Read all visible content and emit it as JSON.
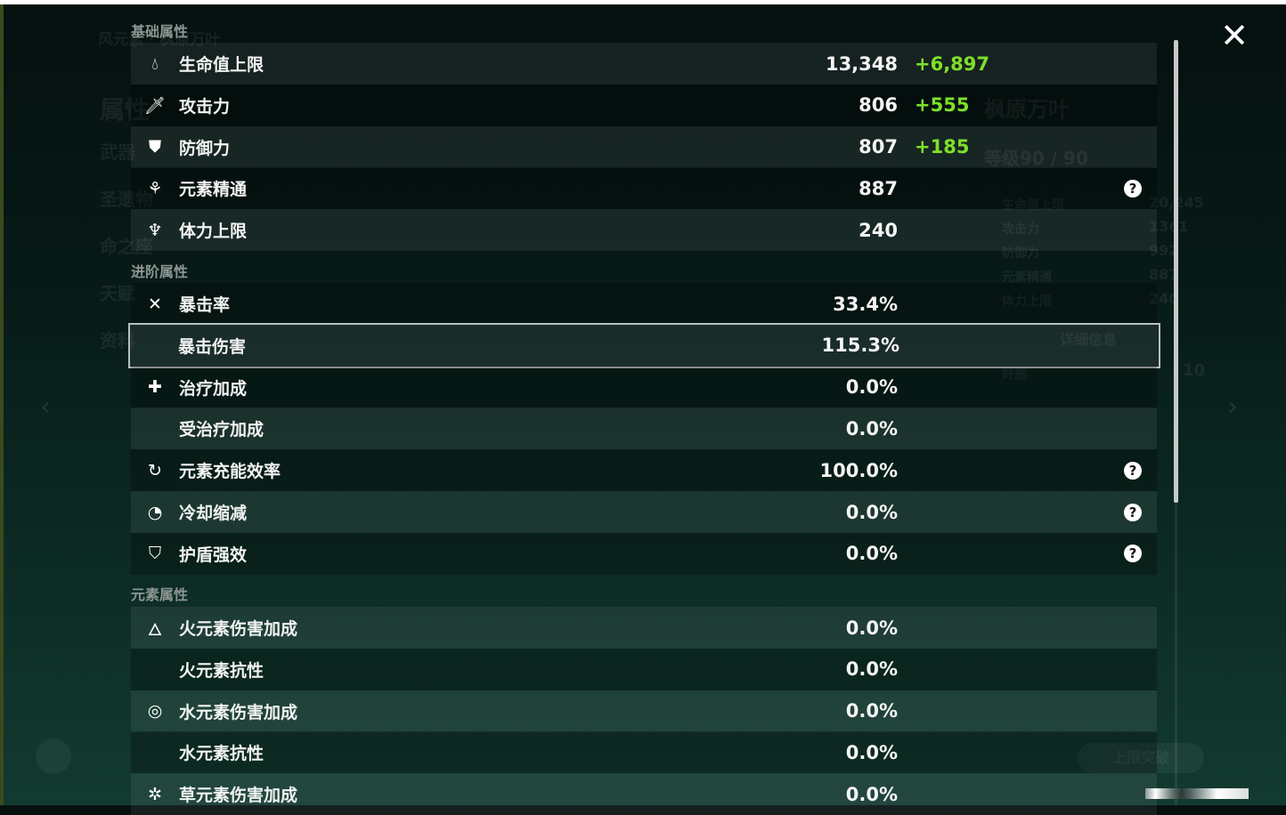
{
  "background": {
    "character_element_title": "风元素 · 枫原万叶",
    "side_menu": [
      "属性",
      "武器",
      "圣遗物",
      "命之座",
      "天赋",
      "资料"
    ],
    "character_name": "枫原万叶",
    "level": "等级90 / 90",
    "summary_stats": [
      {
        "label": "生命值上限",
        "value": "20,245"
      },
      {
        "label": "攻击力",
        "value": "1361"
      },
      {
        "label": "防御力",
        "value": "992"
      },
      {
        "label": "元素精通",
        "value": "887"
      },
      {
        "label": "体力上限",
        "value": "240"
      }
    ],
    "details_button": "详细信息",
    "friendship": {
      "label": "好感",
      "value": "10"
    },
    "ascend_button": "上限突破"
  },
  "sections": [
    {
      "title": "基础属性",
      "rows": [
        {
          "icon": "hp-drop-icon",
          "label": "生命值上限",
          "value": "13,348",
          "bonus": "+6,897",
          "help": false
        },
        {
          "icon": "sword-icon",
          "label": "攻击力",
          "value": "806",
          "bonus": "+555",
          "help": false
        },
        {
          "icon": "shield-icon",
          "label": "防御力",
          "value": "807",
          "bonus": "+185",
          "help": false
        },
        {
          "icon": "elemental-mastery-icon",
          "label": "元素精通",
          "value": "887",
          "bonus": "",
          "help": true
        },
        {
          "icon": "stamina-icon",
          "label": "体力上限",
          "value": "240",
          "bonus": "",
          "help": false
        }
      ]
    },
    {
      "title": "进阶属性",
      "rows": [
        {
          "icon": "crit-rate-icon",
          "label": "暴击率",
          "value": "33.4%",
          "bonus": "",
          "help": false
        },
        {
          "icon": "crit-dmg-icon",
          "label": "暴击伤害",
          "value": "115.3%",
          "bonus": "",
          "help": false,
          "selected": true
        },
        {
          "icon": "healing-cross-icon",
          "label": "治疗加成",
          "value": "0.0%",
          "bonus": "",
          "help": false
        },
        {
          "icon": "",
          "label": "受治疗加成",
          "value": "0.0%",
          "bonus": "",
          "help": false
        },
        {
          "icon": "energy-recharge-icon",
          "label": "元素充能效率",
          "value": "100.0%",
          "bonus": "",
          "help": true
        },
        {
          "icon": "cooldown-icon",
          "label": "冷却缩减",
          "value": "0.0%",
          "bonus": "",
          "help": true
        },
        {
          "icon": "shield-strength-icon",
          "label": "护盾强效",
          "value": "0.0%",
          "bonus": "",
          "help": true
        }
      ]
    },
    {
      "title": "元素属性",
      "rows": [
        {
          "icon": "pyro-icon",
          "label": "火元素伤害加成",
          "value": "0.0%",
          "bonus": "",
          "help": false
        },
        {
          "icon": "",
          "label": "火元素抗性",
          "value": "0.0%",
          "bonus": "",
          "help": false
        },
        {
          "icon": "hydro-icon",
          "label": "水元素伤害加成",
          "value": "0.0%",
          "bonus": "",
          "help": false
        },
        {
          "icon": "",
          "label": "水元素抗性",
          "value": "0.0%",
          "bonus": "",
          "help": false
        },
        {
          "icon": "dendro-icon",
          "label": "草元素伤害加成",
          "value": "0.0%",
          "bonus": "",
          "help": false
        }
      ]
    }
  ],
  "colors": {
    "bonus": "#7ee02a",
    "text": "#f1f3f2",
    "section": "#8c9693"
  },
  "help_glyph": "?",
  "close_glyph": "✕"
}
